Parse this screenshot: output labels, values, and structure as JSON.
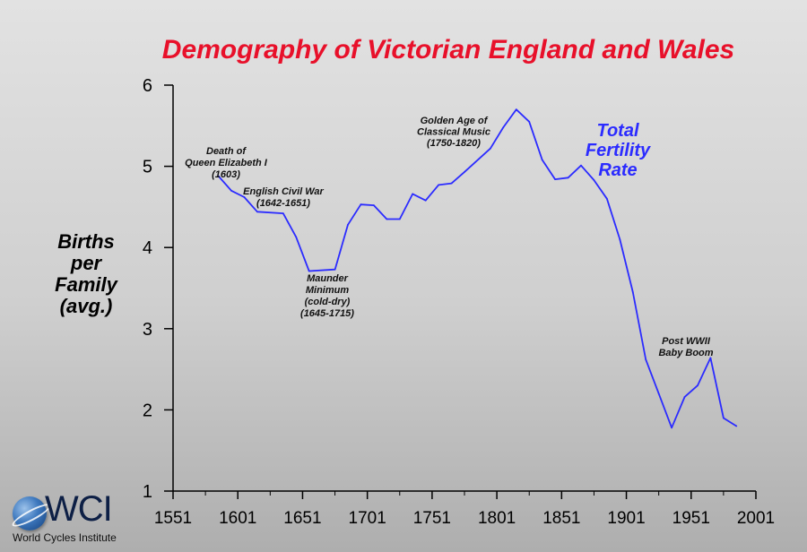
{
  "chart_data": {
    "type": "line",
    "title": "Demography of Victorian England and Wales",
    "ylabel": [
      "Births",
      "per",
      "Family",
      "(avg.)"
    ],
    "xlabel": "",
    "xlim": [
      1551,
      2001
    ],
    "ylim": [
      1,
      6
    ],
    "x_ticks": [
      1551,
      1601,
      1651,
      1701,
      1751,
      1801,
      1851,
      1901,
      1951,
      2001
    ],
    "y_ticks": [
      1,
      2,
      3,
      4,
      5,
      6
    ],
    "grid": false,
    "series": [
      {
        "name": [
          "Total",
          "Fertility",
          "Rate"
        ],
        "color": "#2b2bff",
        "points": [
          [
            1586,
            4.88
          ],
          [
            1596,
            4.7
          ],
          [
            1606,
            4.62
          ],
          [
            1616,
            4.44
          ],
          [
            1636,
            4.42
          ],
          [
            1646,
            4.13
          ],
          [
            1656,
            3.71
          ],
          [
            1676,
            3.73
          ],
          [
            1686,
            4.28
          ],
          [
            1696,
            4.53
          ],
          [
            1706,
            4.52
          ],
          [
            1716,
            4.35
          ],
          [
            1726,
            4.35
          ],
          [
            1736,
            4.66
          ],
          [
            1746,
            4.58
          ],
          [
            1756,
            4.77
          ],
          [
            1766,
            4.79
          ],
          [
            1776,
            4.93
          ],
          [
            1796,
            5.22
          ],
          [
            1806,
            5.48
          ],
          [
            1816,
            5.7
          ],
          [
            1826,
            5.55
          ],
          [
            1836,
            5.08
          ],
          [
            1846,
            4.84
          ],
          [
            1856,
            4.86
          ],
          [
            1866,
            5.01
          ],
          [
            1876,
            4.83
          ],
          [
            1886,
            4.6
          ],
          [
            1896,
            4.1
          ],
          [
            1906,
            3.45
          ],
          [
            1916,
            2.62
          ],
          [
            1926,
            2.2
          ],
          [
            1936,
            1.78
          ],
          [
            1946,
            2.16
          ],
          [
            1956,
            2.3
          ],
          [
            1966,
            2.64
          ],
          [
            1976,
            1.9
          ],
          [
            1986,
            1.8
          ]
        ]
      }
    ],
    "annotations": [
      {
        "lines": [
          "Death of",
          "Queen Elizabeth I",
          "(1603)"
        ]
      },
      {
        "lines": [
          "English Civil War",
          "(1642-1651)"
        ]
      },
      {
        "lines": [
          "Maunder",
          "Minimum",
          "(cold-dry)",
          "(1645-1715)"
        ]
      },
      {
        "lines": [
          "Golden Age of",
          "Classical Music",
          "(1750-1820)"
        ]
      },
      {
        "lines": [
          "Post WWII",
          "Baby Boom"
        ]
      }
    ]
  },
  "colors": {
    "title": "#e8102a",
    "series": "#2b2bff",
    "axis": "#000000",
    "logo_text": "#0d1f45"
  },
  "logo": {
    "icon": "globe-icon",
    "text": "WCI",
    "subtitle": "World Cycles Institute"
  }
}
